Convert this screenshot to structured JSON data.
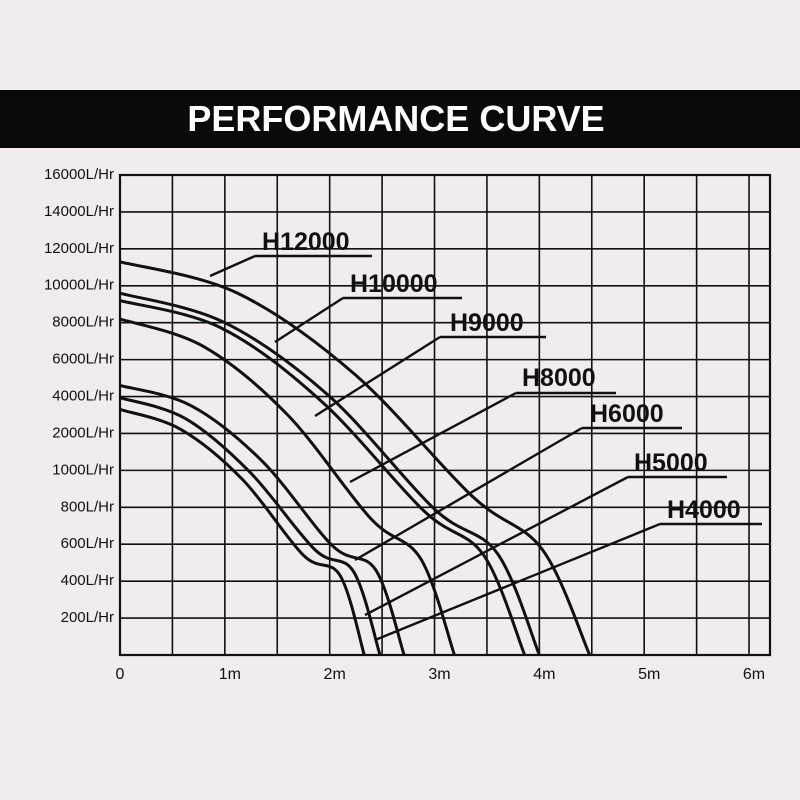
{
  "chart_data": {
    "type": "line",
    "title": "PERFORMANCE CURVE",
    "xlim": [
      0,
      6.2
    ],
    "xticks": [
      0,
      {
        "value": 1,
        "label": "1m"
      },
      {
        "value": 2,
        "label": "2m"
      },
      {
        "value": 3,
        "label": "3m"
      },
      {
        "value": 4,
        "label": "4m"
      },
      {
        "value": 5,
        "label": "5m"
      },
      {
        "value": 6,
        "label": "6m"
      }
    ],
    "ylim": [
      0,
      16000
    ],
    "yticks": [
      {
        "value": 16000,
        "label": "16000L/Hr"
      },
      {
        "value": 14000,
        "label": "14000L/Hr"
      },
      {
        "value": 12000,
        "label": "12000L/Hr"
      },
      {
        "value": 10000,
        "label": "10000L/Hr"
      },
      {
        "value": 8000,
        "label": "8000L/Hr"
      },
      {
        "value": 6000,
        "label": "6000L/Hr"
      },
      {
        "value": 4000,
        "label": "4000L/Hr"
      },
      {
        "value": 2000,
        "label": "2000L/Hr"
      },
      {
        "value": 1000,
        "label": "1000L/Hr"
      },
      {
        "value": 800,
        "label": "800L/Hr"
      },
      {
        "value": 600,
        "label": "600L/Hr"
      },
      {
        "value": 400,
        "label": "400L/Hr"
      },
      {
        "value": 200,
        "label": "200L/Hr"
      }
    ],
    "grid": true,
    "series": [
      {
        "name": "H12000",
        "color": "#111111",
        "x": [
          0,
          1.12,
          2.24,
          3.36,
          4.03,
          4.48
        ],
        "values": [
          11300,
          9600,
          5200,
          860,
          570,
          0
        ]
      },
      {
        "name": "H10000",
        "color": "#111111",
        "x": [
          0,
          1.0,
          2.0,
          3.0,
          3.6,
          4.0
        ],
        "values": [
          9600,
          8000,
          4000,
          790,
          550,
          0
        ]
      },
      {
        "name": "H9000",
        "color": "#111111",
        "x": [
          0,
          0.97,
          1.93,
          2.9,
          3.47,
          3.86
        ],
        "values": [
          9200,
          7700,
          3700,
          780,
          540,
          0
        ]
      },
      {
        "name": "H8000",
        "color": "#111111",
        "x": [
          0,
          0.8,
          1.6,
          2.39,
          2.87,
          3.19
        ],
        "values": [
          8200,
          6700,
          3000,
          740,
          520,
          0
        ]
      },
      {
        "name": "H6000",
        "color": "#111111",
        "x": [
          0,
          0.68,
          1.36,
          2.03,
          2.44,
          2.71
        ],
        "values": [
          4600,
          3500,
          1240,
          590,
          460,
          0
        ]
      },
      {
        "name": "H5000",
        "color": "#111111",
        "x": [
          0,
          0.62,
          1.24,
          1.86,
          2.23,
          2.48
        ],
        "values": [
          3940,
          2820,
          990,
          570,
          450,
          0
        ]
      },
      {
        "name": "H4000",
        "color": "#111111",
        "x": [
          0,
          0.58,
          1.17,
          1.75,
          2.1,
          2.33
        ],
        "values": [
          3300,
          2220,
          950,
          540,
          430,
          0
        ]
      }
    ]
  }
}
